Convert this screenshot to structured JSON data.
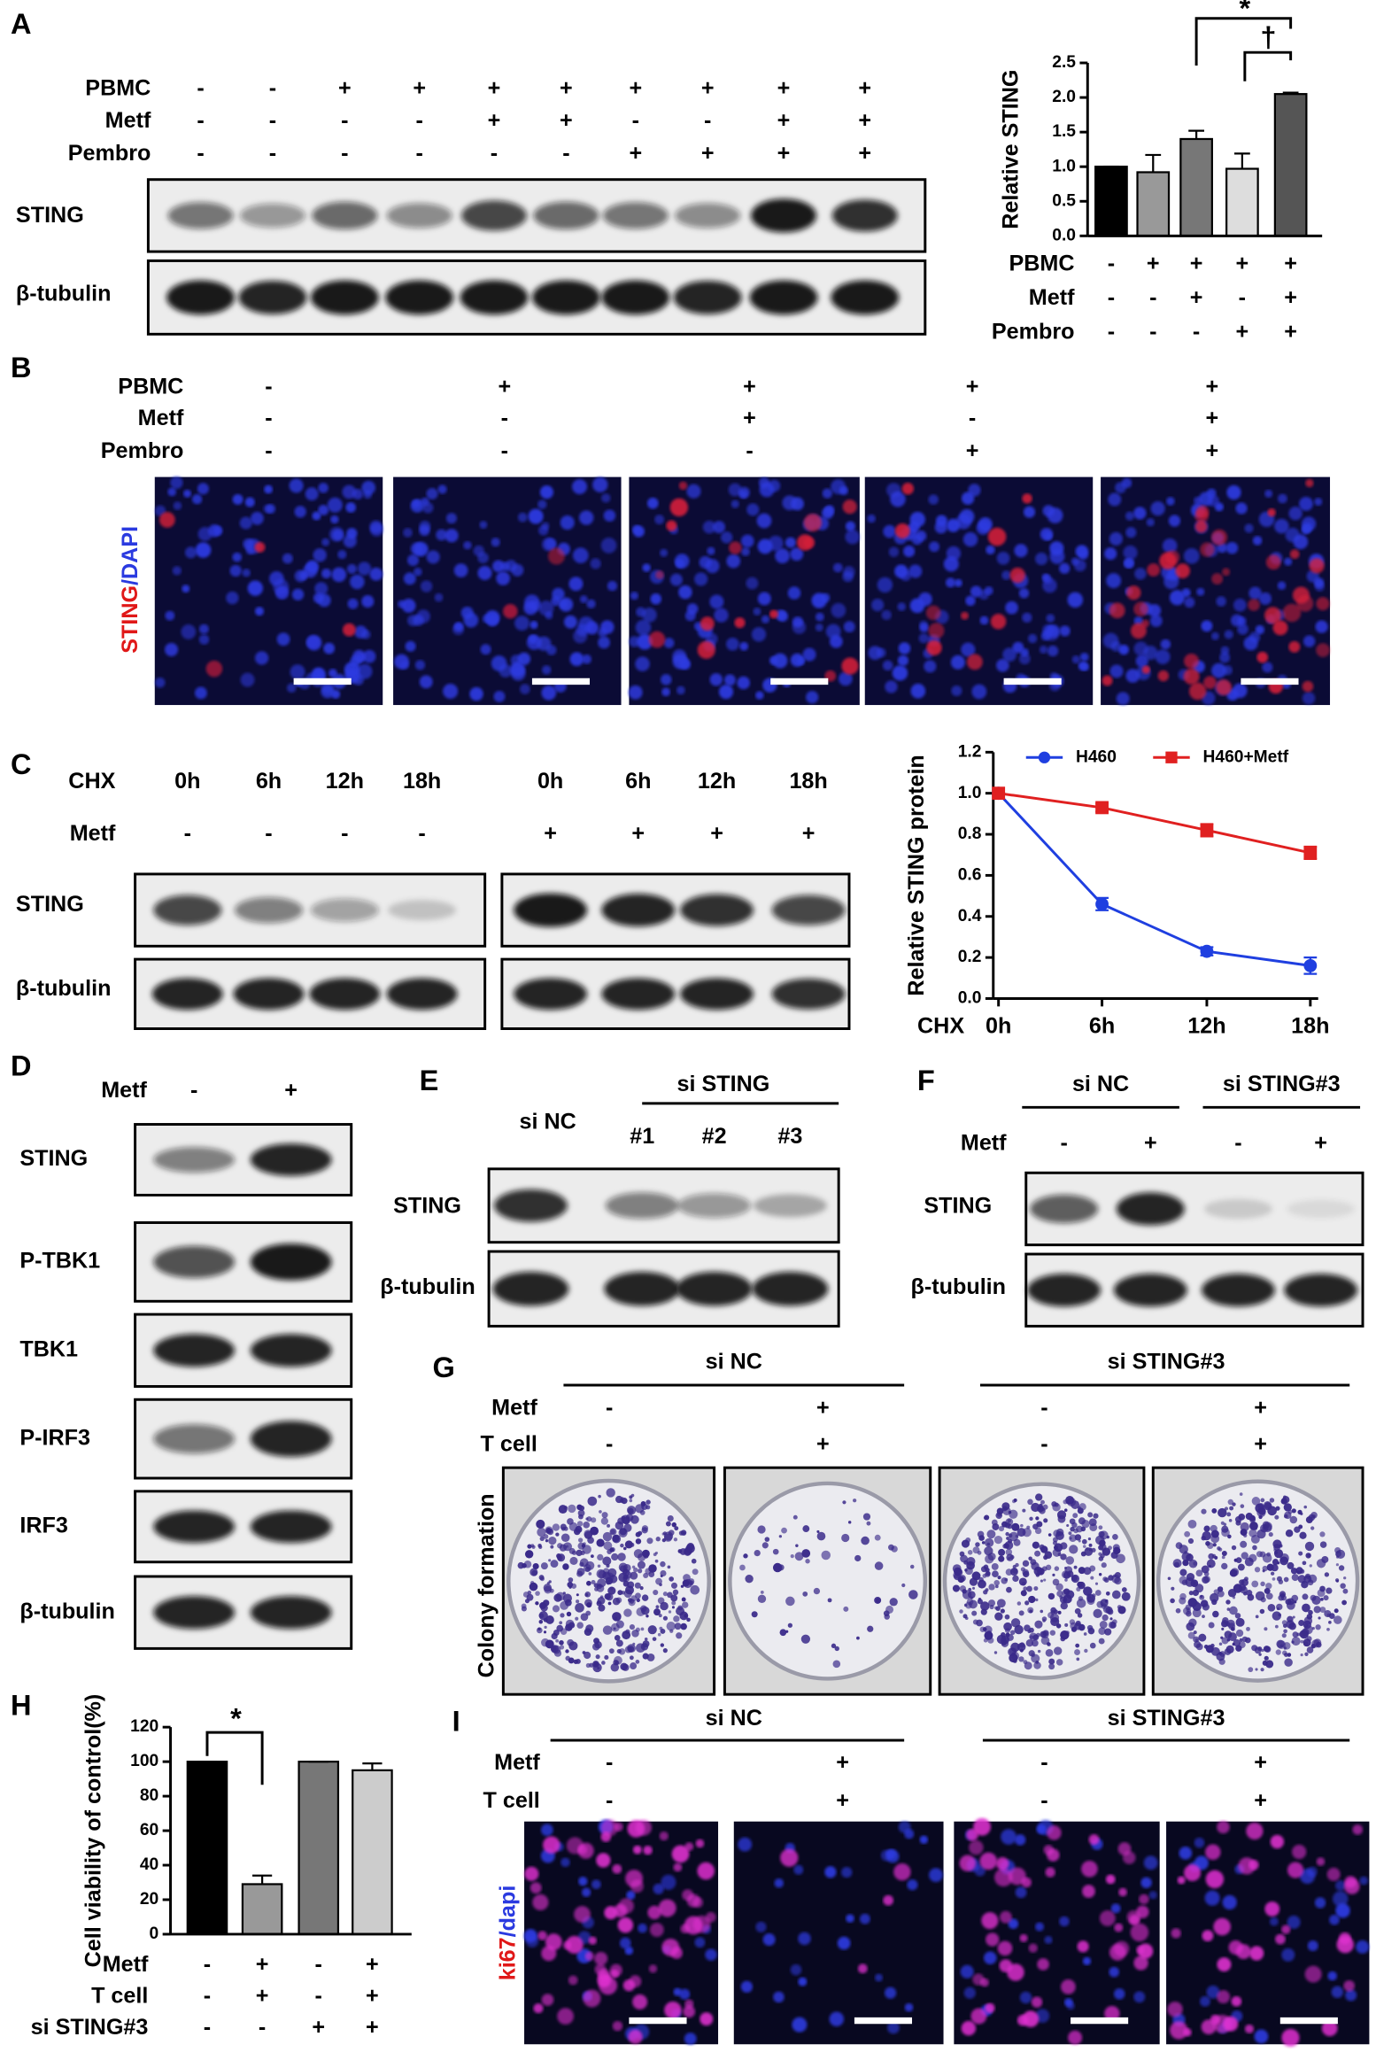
{
  "chart_data": [
    {
      "type": "bar",
      "y_label": "Relative STING",
      "values": [
        1,
        0.92,
        1.4,
        0.97,
        2.05
      ],
      "errors": [
        0,
        0.25,
        0.12,
        0.22,
        0.02
      ],
      "colors": [
        "#000000",
        "#999999",
        "#777777",
        "#dddddd",
        "#555555"
      ],
      "ylim": [
        0,
        2.5
      ],
      "yticks": [
        {
          "value": 0,
          "label": "0.0"
        },
        0.5,
        {
          "value": 1,
          "label": "1.0"
        },
        1.5,
        {
          "value": 2,
          "label": "2.0"
        },
        2.5
      ],
      "conditions": [
        {
          "label": "PBMC",
          "signs": [
            "-",
            "+",
            "+",
            "+",
            "+"
          ]
        },
        {
          "label": "Metf",
          "signs": [
            "-",
            "-",
            "+",
            "-",
            "+"
          ]
        },
        {
          "label": "Pembro",
          "signs": [
            "-",
            "-",
            "-",
            "+",
            "+"
          ]
        }
      ],
      "annotations": [
        "*",
        "†"
      ]
    },
    {
      "type": "line",
      "y_label": "Relative STING protein",
      "x_label": "CHX",
      "categories": [
        "0h",
        "6h",
        "12h",
        "18h"
      ],
      "series": [
        {
          "name": "H460",
          "color": "#1f3fe0",
          "values": [
            1,
            0.46,
            0.23,
            0.16
          ],
          "errors": [
            0,
            0.03,
            0.02,
            0.04
          ]
        },
        {
          "name": "H460+Metf",
          "color": "#e02020",
          "values": [
            1,
            0.93,
            0.82,
            0.71
          ],
          "errors": [
            0,
            0.02,
            0.03,
            0.03
          ]
        }
      ],
      "ylim": [
        0,
        1.2
      ],
      "yticks": [
        {
          "value": 0,
          "label": "0.0"
        },
        0.2,
        0.4,
        0.6,
        0.8,
        {
          "value": 1,
          "label": "1.0"
        },
        1.2
      ],
      "legend": "top"
    },
    {
      "type": "bar",
      "y_label": "Cell viability of control(%)",
      "values": [
        100,
        29,
        100,
        95
      ],
      "errors": [
        0,
        5,
        0,
        4
      ],
      "colors": [
        "#000000",
        "#999999",
        "#777777",
        "#cccccc"
      ],
      "ylim": [
        0,
        120
      ],
      "yticks": [
        0,
        20,
        40,
        60,
        80,
        100,
        120
      ],
      "conditions": [
        {
          "label": "Metf",
          "signs": [
            "-",
            "+",
            "-",
            "+"
          ]
        },
        {
          "label": "T cell",
          "signs": [
            "-",
            "+",
            "-",
            "+"
          ]
        },
        {
          "label": "si STING#3",
          "signs": [
            "-",
            "-",
            "+",
            "+"
          ]
        }
      ],
      "annotations": [
        "*"
      ]
    }
  ],
  "panels": [
    {
      "letter": "A",
      "conditions": [
        {
          "label": "PBMC",
          "signs": [
            "-",
            "-",
            "+",
            "+",
            "+",
            "+",
            "+",
            "+",
            "+",
            "+"
          ]
        },
        {
          "label": "Metf",
          "signs": [
            "-",
            "-",
            "-",
            "-",
            "+",
            "+",
            "-",
            "-",
            "+",
            "+"
          ]
        },
        {
          "label": "Pembro",
          "signs": [
            "-",
            "-",
            "-",
            "-",
            "-",
            "-",
            "+",
            "+",
            "+",
            "+"
          ]
        }
      ],
      "bands": [
        "STING",
        "β-tubulin"
      ]
    },
    {
      "letter": "B",
      "conditions": [
        {
          "label": "PBMC",
          "signs": [
            "-",
            "+",
            "+",
            "+",
            "+"
          ]
        },
        {
          "label": "Metf",
          "signs": [
            "-",
            "-",
            "+",
            "-",
            "+"
          ]
        },
        {
          "label": "Pembro",
          "signs": [
            "-",
            "-",
            "-",
            "+",
            "+"
          ]
        }
      ],
      "stain": [
        "STING",
        "/DAPI"
      ]
    },
    {
      "letter": "C",
      "conditions": [
        {
          "label": "CHX",
          "signs": [
            "0h",
            "6h",
            "12h",
            "18h",
            "0h",
            "6h",
            "12h",
            "18h"
          ]
        },
        {
          "label": "Metf",
          "signs": [
            "-",
            "-",
            "-",
            "-",
            "+",
            "+",
            "+",
            "+"
          ]
        }
      ],
      "bands": [
        "STING",
        "β-tubulin"
      ]
    },
    {
      "letter": "D",
      "conditions": [
        {
          "label": "Metf",
          "signs": [
            "-",
            "+"
          ]
        }
      ],
      "bands": [
        "STING",
        "P-TBK1",
        "TBK1",
        "P-IRF3",
        "IRF3",
        "β-tubulin"
      ]
    },
    {
      "letter": "E",
      "groups": [
        "si NC",
        "si STING"
      ],
      "lanes": [
        "#1",
        "#2",
        "#3"
      ],
      "bands": [
        "STING",
        "β-tubulin"
      ]
    },
    {
      "letter": "F",
      "groups": [
        "si NC",
        "si STING#3"
      ],
      "conditions": [
        {
          "label": "Metf",
          "signs": [
            "-",
            "+",
            "-",
            "+"
          ]
        }
      ],
      "bands": [
        "STING",
        "β-tubulin"
      ]
    },
    {
      "letter": "G",
      "groups": [
        "si NC",
        "si STING#3"
      ],
      "conditions": [
        {
          "label": "Metf",
          "signs": [
            "-",
            "+",
            "-",
            "+"
          ]
        },
        {
          "label": "T cell",
          "signs": [
            "-",
            "+",
            "-",
            "+"
          ]
        }
      ],
      "stain": [
        "Colony formation"
      ]
    },
    {
      "letter": "H"
    },
    {
      "letter": "I",
      "groups": [
        "si NC",
        "si STING#3"
      ],
      "conditions": [
        {
          "label": "Metf",
          "signs": [
            "-",
            "+",
            "-",
            "+"
          ]
        },
        {
          "label": "T cell",
          "signs": [
            "-",
            "+",
            "-",
            "+"
          ]
        }
      ],
      "stain": [
        "ki67",
        "/dapi"
      ]
    }
  ]
}
